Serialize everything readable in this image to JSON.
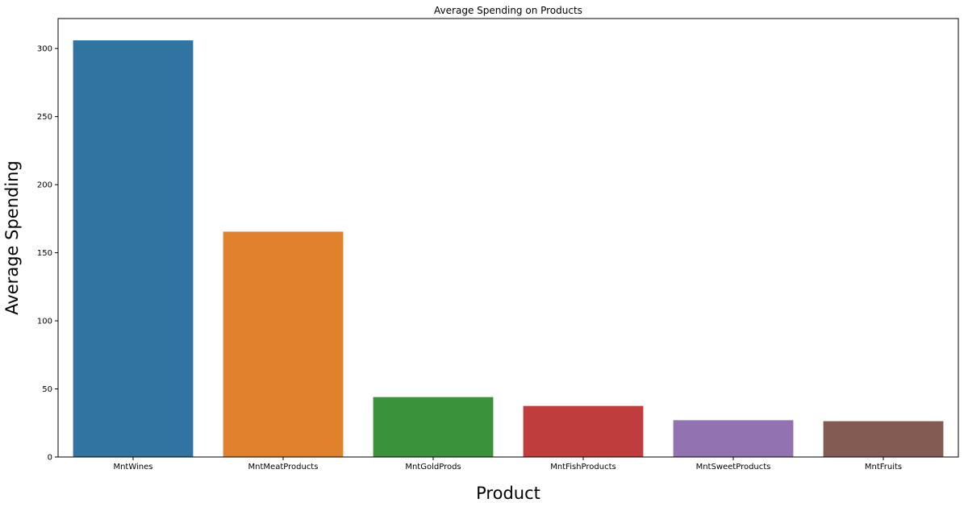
{
  "chart_data": {
    "type": "bar",
    "title": "Average Spending on Products",
    "xlabel": "Product",
    "ylabel": "Average Spending",
    "categories": [
      "MntWines",
      "MntMeatProducts",
      "MntGoldProds",
      "MntFishProducts",
      "MntSweetProducts",
      "MntFruits"
    ],
    "values": [
      306,
      165.5,
      44,
      37.5,
      27,
      26.3
    ],
    "colors": [
      "#3274a1",
      "#e1812c",
      "#3a923a",
      "#c03d3e",
      "#9372b2",
      "#845b53"
    ],
    "ylim": [
      0,
      322
    ],
    "yticks": [
      0,
      50,
      100,
      150,
      200,
      250,
      300
    ],
    "grid": false,
    "legend": "none"
  }
}
